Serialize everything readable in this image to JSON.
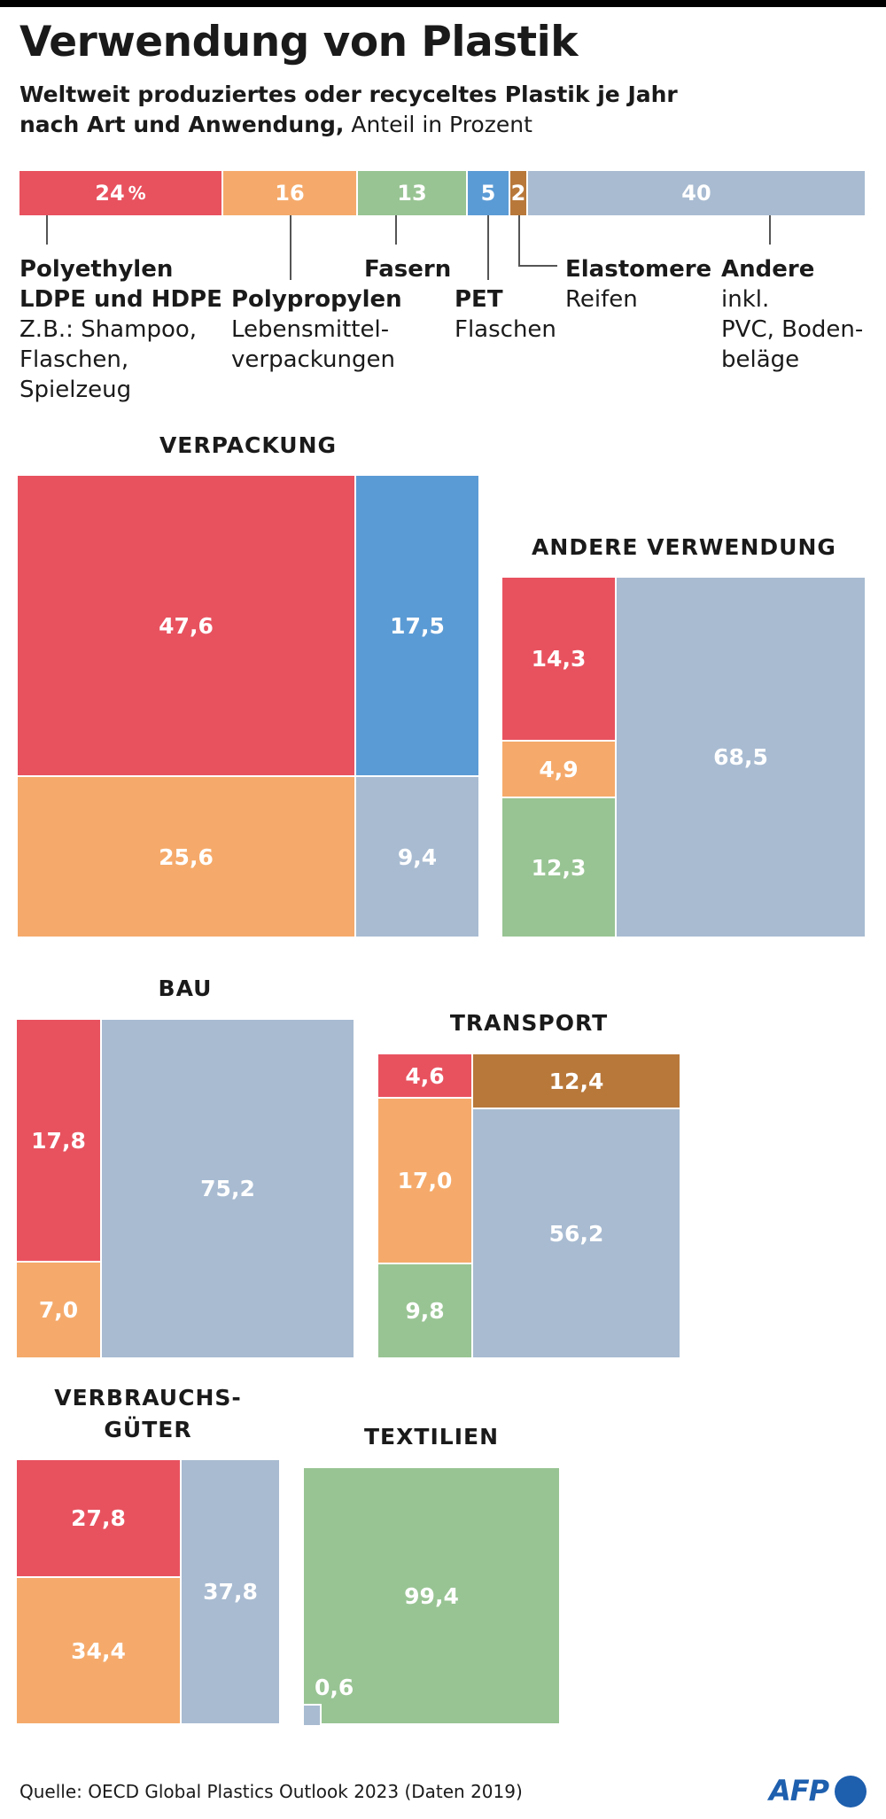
{
  "title": "Verwendung von Plastik",
  "subtitle": {
    "bold": "Weltweit produziertes oder recyceltes Plastik je Jahr nach Art und Anwendung,",
    "line1": "Weltweit produziertes oder recyceltes Plastik je Jahr",
    "line2_bold": "nach Art und Anwendung,",
    "line2_normal": " Anteil in Prozent"
  },
  "source": "Quelle: OECD Global Plastics Outlook 2023 (Daten 2019)",
  "logo": "AFP",
  "colors": {
    "polyethylen": "#e8525f",
    "polypropylen": "#f5aa6b",
    "fasern": "#98c493",
    "pet": "#5b9bd5",
    "elastomere": "#b8783a",
    "andere": "#a8bbd1"
  },
  "chart_data": [
    {
      "type": "bar",
      "stacked": true,
      "orientation": "horizontal",
      "unit": "%",
      "series": [
        {
          "name": "Polyethylen LDPE und HDPE",
          "value": 24,
          "label": "24",
          "unit_label": "%",
          "desc": [
            "Z.B.: Shampoo,",
            "Flaschen,",
            "Spielzeug"
          ],
          "name_lines": [
            "Polyethylen",
            "LDPE und HDPE"
          ]
        },
        {
          "name": "Polypropylen",
          "value": 16,
          "label": "16",
          "desc": [
            "Lebensmittel-",
            "verpackungen"
          ],
          "name_lines": [
            "Polypropylen"
          ]
        },
        {
          "name": "Fasern",
          "value": 13,
          "label": "13",
          "desc": [],
          "name_lines": [
            "Fasern"
          ]
        },
        {
          "name": "PET",
          "value": 5,
          "label": "5",
          "desc": [
            "Flaschen"
          ],
          "name_lines": [
            "PET"
          ]
        },
        {
          "name": "Elastomere",
          "value": 2,
          "label": "2",
          "desc": [
            "Reifen"
          ],
          "name_lines": [
            "Elastomere"
          ]
        },
        {
          "name": "Andere",
          "value": 40,
          "label": "40",
          "desc": [
            "inkl.",
            "PVC, Boden-",
            "beläge"
          ],
          "name_lines": [
            "Andere"
          ]
        }
      ]
    },
    {
      "type": "treemap",
      "title": "VERPACKUNG",
      "values": [
        {
          "category": "Polyethylen",
          "value": 47.6,
          "label": "47,6"
        },
        {
          "category": "PET",
          "value": 17.5,
          "label": "17,5"
        },
        {
          "category": "Polypropylen",
          "value": 25.6,
          "label": "25,6"
        },
        {
          "category": "Andere",
          "value": 9.4,
          "label": "9,4"
        }
      ]
    },
    {
      "type": "treemap",
      "title": "ANDERE VERWENDUNG",
      "values": [
        {
          "category": "Polyethylen",
          "value": 14.3,
          "label": "14,3"
        },
        {
          "category": "Polypropylen",
          "value": 4.9,
          "label": "4,9"
        },
        {
          "category": "Fasern",
          "value": 12.3,
          "label": "12,3"
        },
        {
          "category": "Andere",
          "value": 68.5,
          "label": "68,5"
        }
      ]
    },
    {
      "type": "treemap",
      "title": "BAU",
      "values": [
        {
          "category": "Polyethylen",
          "value": 17.8,
          "label": "17,8"
        },
        {
          "category": "Polypropylen",
          "value": 7.0,
          "label": "7,0"
        },
        {
          "category": "Andere",
          "value": 75.2,
          "label": "75,2"
        }
      ]
    },
    {
      "type": "treemap",
      "title": "TRANSPORT",
      "values": [
        {
          "category": "Polyethylen",
          "value": 4.6,
          "label": "4,6"
        },
        {
          "category": "Elastomere",
          "value": 12.4,
          "label": "12,4"
        },
        {
          "category": "Polypropylen",
          "value": 17.0,
          "label": "17,0"
        },
        {
          "category": "Fasern",
          "value": 9.8,
          "label": "9,8"
        },
        {
          "category": "Andere",
          "value": 56.2,
          "label": "56,2"
        }
      ]
    },
    {
      "type": "treemap",
      "title_lines": [
        "VERBRAUCHS-",
        "GÜTER"
      ],
      "values": [
        {
          "category": "Polyethylen",
          "value": 27.8,
          "label": "27,8"
        },
        {
          "category": "Polypropylen",
          "value": 34.4,
          "label": "34,4"
        },
        {
          "category": "Andere",
          "value": 37.8,
          "label": "37,8"
        }
      ]
    },
    {
      "type": "treemap",
      "title": "TEXTILIEN",
      "values": [
        {
          "category": "Fasern",
          "value": 99.4,
          "label": "99,4"
        },
        {
          "category": "Andere",
          "value": 0.6,
          "label": "0,6"
        }
      ]
    }
  ]
}
